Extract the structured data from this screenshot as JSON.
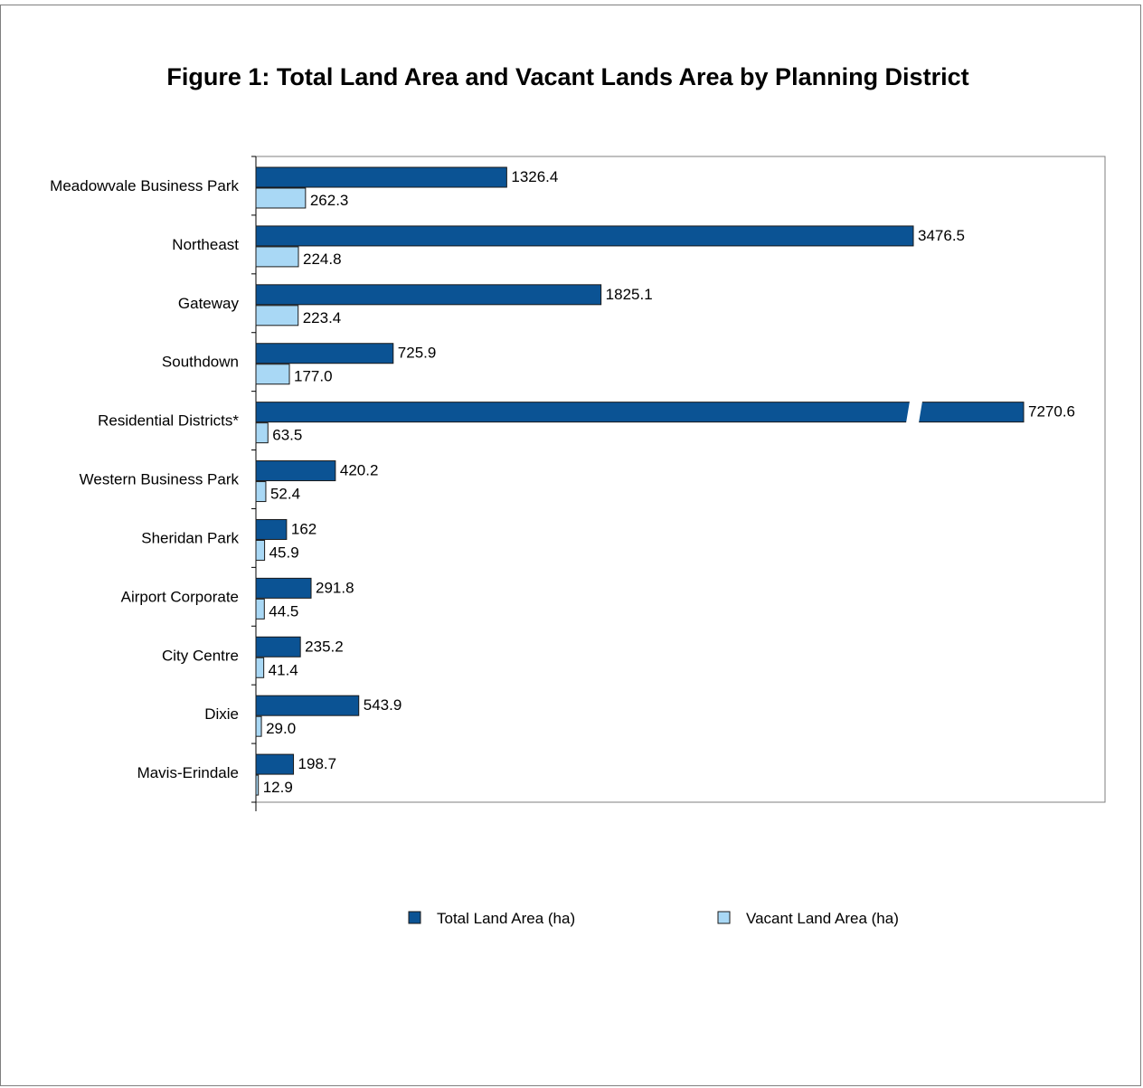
{
  "chart_data": {
    "type": "bar",
    "orientation": "horizontal",
    "title": "Figure 1: Total Land Area and Vacant Lands Area by Planning District",
    "categories": [
      "Meadowvale Business Park",
      "Northeast",
      "Gateway",
      "Southdown",
      "Residential Districts*",
      "Western Business Park",
      "Sheridan Park",
      "Airport Corporate",
      "City Centre",
      "Dixie",
      "Mavis-Erindale"
    ],
    "series": [
      {
        "name": "Total Land Area (ha)",
        "color": "#0B5394",
        "values": [
          1326.4,
          3476.5,
          1825.1,
          725.9,
          7270.6,
          420.2,
          162,
          291.8,
          235.2,
          543.9,
          198.7
        ],
        "labels": [
          "1326.4",
          "3476.5",
          "1825.1",
          "725.9",
          "7270.6",
          "420.2",
          "162",
          "291.8",
          "235.2",
          "543.9",
          "198.7"
        ]
      },
      {
        "name": "Vacant Land Area (ha)",
        "color": "#A9D8F5",
        "values": [
          262.3,
          224.8,
          223.4,
          177.0,
          63.5,
          52.4,
          45.9,
          44.5,
          41.4,
          29.0,
          12.9
        ],
        "labels": [
          "262.3",
          "224.8",
          "223.4",
          "177.0",
          "63.5",
          "52.4",
          "45.9",
          "44.5",
          "41.4",
          "29.0",
          "12.9"
        ]
      }
    ],
    "axis_break": {
      "category": "Residential Districts*",
      "series": "Total Land Area (ha)"
    },
    "xlim": [
      0,
      4500
    ],
    "grid": false,
    "legend": "bottom"
  }
}
